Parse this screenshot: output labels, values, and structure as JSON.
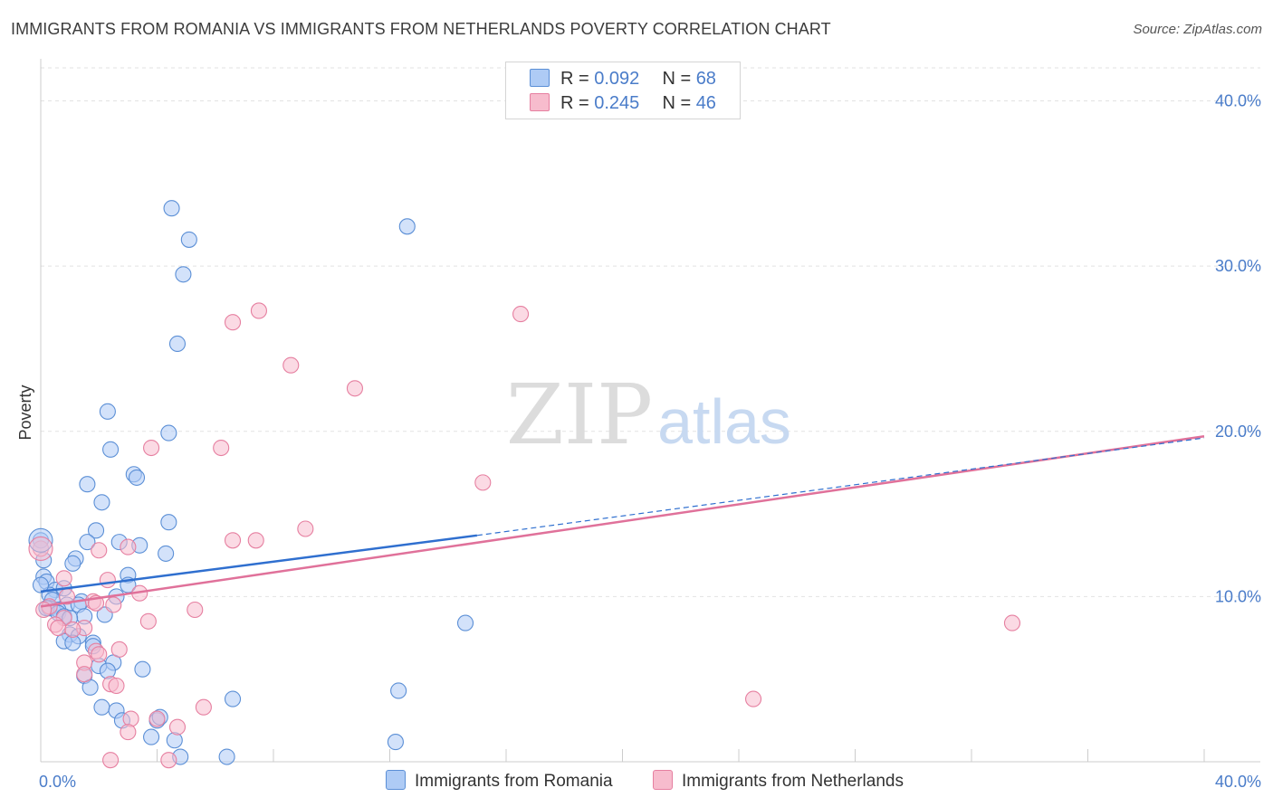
{
  "header": {
    "title": "IMMIGRANTS FROM ROMANIA VS IMMIGRANTS FROM NETHERLANDS POVERTY CORRELATION CHART",
    "source": "Source: ZipAtlas.com"
  },
  "watermark": {
    "zip": "ZIP",
    "atlas": "atlas"
  },
  "legend": {
    "rows": [
      {
        "r_label": "R =",
        "r_value": "0.092",
        "n_label": "N =",
        "n_value": "68"
      },
      {
        "r_label": "R =",
        "r_value": "0.245",
        "n_label": "N =",
        "n_value": "46"
      }
    ]
  },
  "colors": {
    "romania_fill": "#aecbf5",
    "romania_stroke": "#5b8fd6",
    "romania_line": "#2f6fcf",
    "netherlands_fill": "#f7bccd",
    "netherlands_stroke": "#e67fa0",
    "netherlands_line": "#e0719a",
    "tick_text": "#4a7cc9"
  },
  "chart_data": {
    "type": "scatter",
    "title": "IMMIGRANTS FROM ROMANIA VS IMMIGRANTS FROM NETHERLANDS POVERTY CORRELATION CHART",
    "xlabel": "",
    "ylabel": "Poverty",
    "xlim": [
      0,
      40
    ],
    "ylim": [
      0,
      42
    ],
    "x_tick_labels": [
      "0.0%",
      "40.0%"
    ],
    "y_ticks": [
      10,
      20,
      30,
      40
    ],
    "y_tick_labels": [
      "10.0%",
      "20.0%",
      "30.0%",
      "40.0%"
    ],
    "grid": true,
    "legend_position": "top-center",
    "series": [
      {
        "name": "Immigrants from Romania",
        "points": [
          [
            4.5,
            33.5
          ],
          [
            5.1,
            31.6
          ],
          [
            4.9,
            29.5
          ],
          [
            12.6,
            32.4
          ],
          [
            4.7,
            25.3
          ],
          [
            2.3,
            21.2
          ],
          [
            2.4,
            18.9
          ],
          [
            4.4,
            19.9
          ],
          [
            3.2,
            17.4
          ],
          [
            3.3,
            17.2
          ],
          [
            1.6,
            16.8
          ],
          [
            2.1,
            15.7
          ],
          [
            4.4,
            14.5
          ],
          [
            1.9,
            14.0
          ],
          [
            0.0,
            13.4
          ],
          [
            1.6,
            13.3
          ],
          [
            2.7,
            13.3
          ],
          [
            3.4,
            13.1
          ],
          [
            4.3,
            12.6
          ],
          [
            1.2,
            12.3
          ],
          [
            0.1,
            12.2
          ],
          [
            1.1,
            12.0
          ],
          [
            3.0,
            11.3
          ],
          [
            0.1,
            11.2
          ],
          [
            0.2,
            10.9
          ],
          [
            3.0,
            10.7
          ],
          [
            0.5,
            10.4
          ],
          [
            0.8,
            10.5
          ],
          [
            0.3,
            10.1
          ],
          [
            2.6,
            10.0
          ],
          [
            0.4,
            9.8
          ],
          [
            1.4,
            9.7
          ],
          [
            0.9,
            9.5
          ],
          [
            1.3,
            9.5
          ],
          [
            0.3,
            9.3
          ],
          [
            0.6,
            9.2
          ],
          [
            0.2,
            9.3
          ],
          [
            0.6,
            9.0
          ],
          [
            0.8,
            8.8
          ],
          [
            1.5,
            8.8
          ],
          [
            2.2,
            8.9
          ],
          [
            14.6,
            8.4
          ],
          [
            1.0,
            7.7
          ],
          [
            1.3,
            7.6
          ],
          [
            0.8,
            7.3
          ],
          [
            1.1,
            7.2
          ],
          [
            1.8,
            7.2
          ],
          [
            1.8,
            7.0
          ],
          [
            2.0,
            5.8
          ],
          [
            2.5,
            6.0
          ],
          [
            3.5,
            5.6
          ],
          [
            1.5,
            5.2
          ],
          [
            2.3,
            5.5
          ],
          [
            1.7,
            4.5
          ],
          [
            12.3,
            4.3
          ],
          [
            6.6,
            3.8
          ],
          [
            2.1,
            3.3
          ],
          [
            2.6,
            3.1
          ],
          [
            2.8,
            2.5
          ],
          [
            4.0,
            2.5
          ],
          [
            4.1,
            2.7
          ],
          [
            3.8,
            1.5
          ],
          [
            4.6,
            1.3
          ],
          [
            12.2,
            1.2
          ],
          [
            4.8,
            0.3
          ],
          [
            6.4,
            0.3
          ],
          [
            0.0,
            10.7
          ],
          [
            1.0,
            8.7
          ]
        ]
      },
      {
        "name": "Immigrants from Netherlands",
        "points": [
          [
            7.5,
            27.3
          ],
          [
            6.6,
            26.6
          ],
          [
            16.5,
            27.1
          ],
          [
            8.6,
            24.0
          ],
          [
            10.8,
            22.6
          ],
          [
            3.8,
            19.0
          ],
          [
            6.2,
            19.0
          ],
          [
            15.2,
            16.9
          ],
          [
            9.1,
            14.1
          ],
          [
            6.6,
            13.4
          ],
          [
            7.4,
            13.4
          ],
          [
            3.0,
            13.0
          ],
          [
            0.0,
            12.9
          ],
          [
            2.0,
            12.8
          ],
          [
            0.8,
            11.1
          ],
          [
            2.3,
            11.0
          ],
          [
            3.4,
            10.2
          ],
          [
            0.9,
            10.0
          ],
          [
            1.8,
            9.7
          ],
          [
            1.9,
            9.6
          ],
          [
            2.5,
            9.5
          ],
          [
            0.3,
            9.4
          ],
          [
            0.1,
            9.2
          ],
          [
            5.3,
            9.2
          ],
          [
            0.8,
            8.7
          ],
          [
            3.7,
            8.5
          ],
          [
            33.4,
            8.4
          ],
          [
            0.5,
            8.3
          ],
          [
            0.6,
            8.1
          ],
          [
            1.5,
            8.1
          ],
          [
            1.1,
            8.0
          ],
          [
            1.9,
            6.7
          ],
          [
            2.7,
            6.8
          ],
          [
            2.0,
            6.5
          ],
          [
            1.5,
            6.0
          ],
          [
            1.5,
            5.3
          ],
          [
            2.4,
            4.7
          ],
          [
            2.6,
            4.6
          ],
          [
            24.5,
            3.8
          ],
          [
            5.6,
            3.3
          ],
          [
            3.1,
            2.6
          ],
          [
            4.0,
            2.6
          ],
          [
            4.7,
            2.1
          ],
          [
            3.0,
            1.8
          ],
          [
            4.4,
            0.1
          ],
          [
            2.4,
            0.1
          ]
        ]
      }
    ],
    "trend_lines": [
      {
        "series": "Immigrants from Romania",
        "x_solid": [
          0,
          15.0
        ],
        "y_solid": [
          10.3,
          13.7
        ],
        "x_dashed": [
          15.0,
          40
        ],
        "y_dashed": [
          13.7,
          19.6
        ]
      },
      {
        "series": "Immigrants from Netherlands",
        "x": [
          0,
          40
        ],
        "y": [
          9.4,
          19.7
        ]
      }
    ]
  }
}
